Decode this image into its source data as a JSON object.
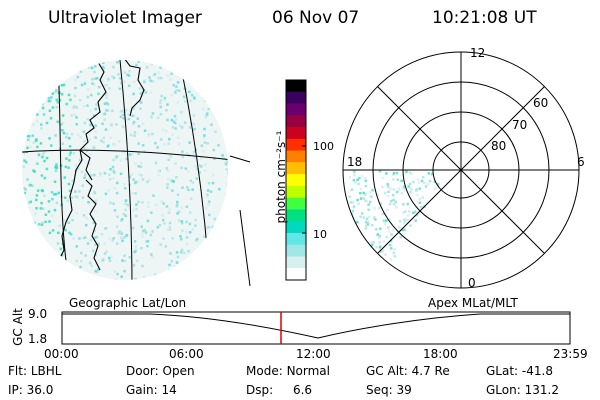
{
  "header": {
    "instrument": "Ultraviolet Imager",
    "date": "06 Nov 07",
    "time": "10:21:08 UT"
  },
  "colorbar": {
    "unit_label": "photon cm⁻²s⁻¹",
    "ticks": [
      "100",
      "10"
    ],
    "colors": [
      "#000000",
      "#3a0060",
      "#6a0070",
      "#990040",
      "#cc0020",
      "#ff3000",
      "#ff8000",
      "#ffc000",
      "#ffff00",
      "#c0ff00",
      "#40ff40",
      "#00e080",
      "#00d8c0",
      "#60e8e8",
      "#a0e8e8",
      "#d8f0f0",
      "#ffffff"
    ]
  },
  "polar_plot": {
    "mlt_labels": [
      "12",
      "6",
      "0",
      "18"
    ],
    "mlat_labels": [
      "60",
      "70",
      "80"
    ]
  },
  "panels": {
    "left_label": "Geographic Lat/Lon",
    "right_label": "Apex MLat/MLT"
  },
  "altitude_plot": {
    "ylabel": "GC Alt",
    "y_ticks": [
      "9.0",
      "1.8"
    ],
    "x_ticks": [
      "00:00",
      "06:00",
      "12:00",
      "18:00",
      "23:59"
    ],
    "marker_time": "10:21"
  },
  "status": {
    "flt_label": "Flt:",
    "flt_value": "LBHL",
    "door_label": "Door:",
    "door_value": "Open",
    "mode_label": "Mode:",
    "mode_value": "Normal",
    "gcalt_label": "GC Alt:",
    "gcalt_value": "4.7 Re",
    "glat_label": "GLat:",
    "glat_value": "-41.8",
    "ip_label": "IP:",
    "ip_value": "36.0",
    "gain_label": "Gain:",
    "gain_value": "14",
    "dsp_label": "Dsp:",
    "dsp_value": "6.6",
    "seq_label": "Seq:",
    "seq_value": "39",
    "glon_label": "GLon:",
    "glon_value": "131.2"
  }
}
